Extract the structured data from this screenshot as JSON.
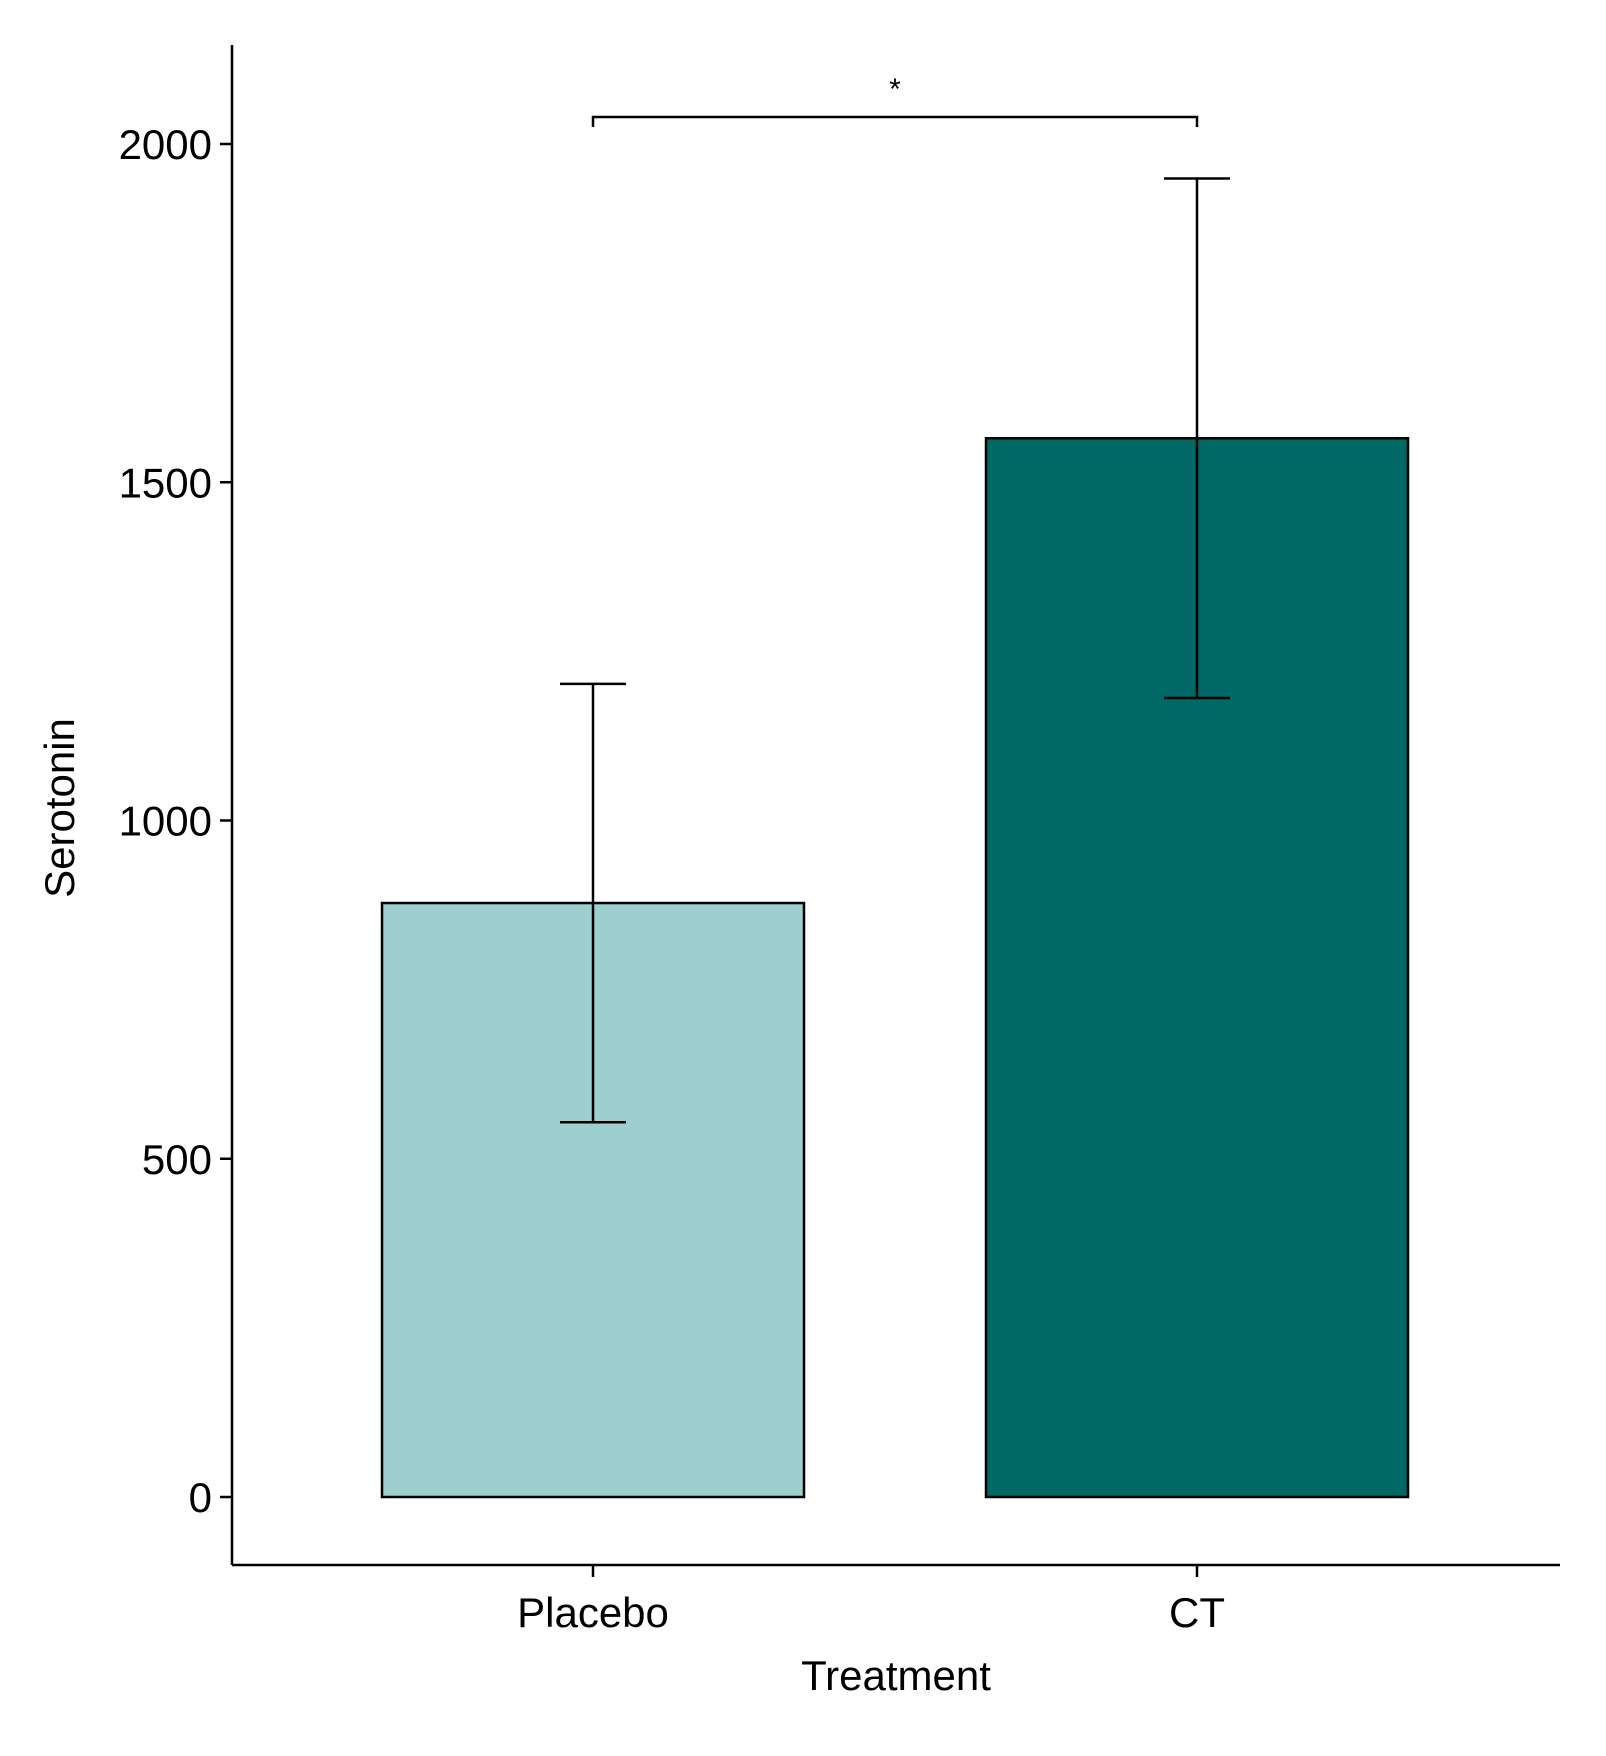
{
  "chart_data": {
    "type": "bar",
    "title": "",
    "xlabel": "Treatment",
    "ylabel": "Serotonin",
    "categories": [
      "Placebo",
      "CT"
    ],
    "values": [
      878,
      1565
    ],
    "error_lower": [
      554,
      1181
    ],
    "error_upper": [
      1202,
      1949
    ],
    "colors": [
      "#9ECFD0",
      "#006966"
    ],
    "edge_color": "#000000",
    "ylim": [
      -100,
      2150
    ],
    "yticks": [
      0,
      500,
      1000,
      1500,
      2000
    ],
    "ytick_labels": [
      "0",
      "500",
      "1000",
      "1500",
      "2000"
    ],
    "grid": false,
    "significance": {
      "from": "Placebo",
      "to": "CT",
      "level": 2040,
      "label": "*"
    }
  }
}
